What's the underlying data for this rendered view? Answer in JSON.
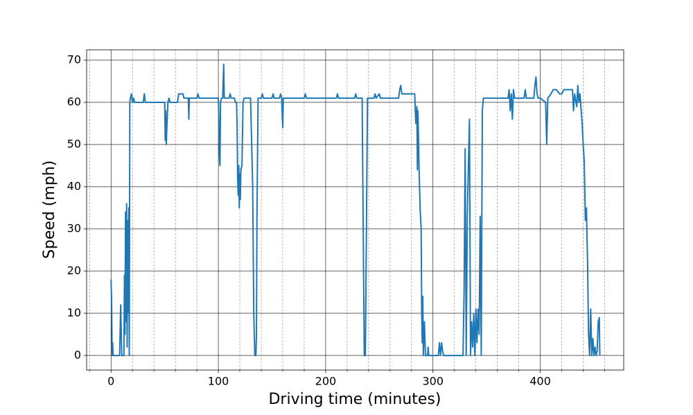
{
  "chart_data": {
    "type": "line",
    "x_label": "Driving time (minutes)",
    "y_label": "Speed (mph)",
    "color": "#1f77b4",
    "xlim": [
      -22.75,
      477.75
    ],
    "ylim": [
      -3.45,
      72.45
    ],
    "xticks": [
      0,
      100,
      200,
      300,
      400
    ],
    "xminorticks": [
      -20,
      20,
      40,
      60,
      80,
      120,
      140,
      160,
      180,
      220,
      240,
      260,
      280,
      320,
      340,
      360,
      380,
      420,
      440,
      460
    ],
    "yticks": [
      0,
      10,
      20,
      30,
      40,
      50,
      60,
      70
    ],
    "grid": true,
    "minor_grid": true,
    "x": [
      0,
      0.5,
      1,
      1.5,
      2,
      8,
      9,
      10,
      12,
      12.5,
      13,
      13.5,
      14,
      14.5,
      15,
      15.5,
      16,
      16.5,
      17,
      17.5,
      18,
      19,
      20,
      21,
      22,
      30,
      31,
      32,
      40,
      50,
      50.5,
      51,
      51.5,
      52,
      53,
      54,
      55,
      62,
      63,
      67,
      68,
      72,
      72.5,
      73,
      80,
      81,
      82,
      100,
      100.5,
      101,
      101.5,
      102,
      103,
      104,
      105,
      105.5,
      110,
      111,
      112,
      115,
      116,
      117,
      117.5,
      118,
      118.5,
      119,
      119.5,
      120,
      120.5,
      121,
      122,
      123,
      124,
      125,
      130,
      132,
      133,
      134,
      135,
      135.5,
      136,
      137,
      140,
      141,
      142,
      150,
      151,
      152,
      157,
      158,
      159,
      160,
      160.5,
      180,
      181,
      182,
      210,
      211,
      212,
      227,
      228,
      229,
      234,
      235,
      236,
      237,
      238,
      239,
      245,
      246,
      247,
      250,
      251,
      260,
      268,
      269,
      270,
      271,
      280,
      283,
      284,
      285,
      285.5,
      286,
      287,
      288,
      289,
      289.5,
      290,
      290.5,
      291,
      292,
      293,
      295,
      295.5,
      296,
      305,
      306,
      307,
      308,
      309,
      310,
      328,
      329,
      330,
      331,
      332,
      333,
      334,
      335,
      336,
      337,
      338,
      339,
      340,
      341,
      342,
      343,
      344,
      345,
      346,
      347,
      370,
      371,
      372,
      373,
      374,
      375,
      376,
      385,
      386,
      387,
      394,
      395,
      396,
      397,
      398,
      400,
      405,
      406,
      407,
      410,
      412,
      415,
      418,
      420,
      422,
      430,
      431,
      432,
      434,
      435,
      436,
      437,
      439,
      440,
      441,
      442,
      443,
      444,
      445,
      446,
      447,
      448,
      449,
      450,
      451,
      452,
      453,
      454,
      455,
      455.5
    ],
    "values": [
      18,
      14,
      0,
      3,
      0,
      0,
      12,
      0,
      0,
      19,
      5,
      34,
      8,
      36,
      2,
      32,
      10,
      35,
      0,
      60,
      61,
      62,
      60,
      61,
      60,
      60,
      62,
      60,
      60,
      60,
      51,
      58,
      50,
      54,
      60,
      61,
      60,
      60,
      62,
      62,
      61,
      61,
      56,
      61,
      61,
      62,
      61,
      61,
      55,
      47,
      45,
      60,
      61,
      61,
      69,
      61,
      61,
      62,
      61,
      61,
      60,
      60,
      54,
      42,
      38,
      45,
      35,
      43,
      37,
      44,
      45,
      60,
      61,
      61,
      61,
      40,
      10,
      0,
      0,
      5,
      33,
      61,
      61,
      62,
      61,
      61,
      62,
      61,
      61,
      62,
      61,
      54,
      61,
      61,
      62,
      61,
      61,
      62,
      61,
      61,
      62,
      61,
      61,
      30,
      0,
      0,
      30,
      61,
      61,
      62,
      61,
      62,
      61,
      61,
      61,
      63,
      64,
      62,
      62,
      62,
      55,
      59,
      44,
      58,
      45,
      35,
      30,
      10,
      3,
      14,
      0,
      8,
      0,
      0,
      2,
      0,
      0,
      3,
      0,
      3,
      1,
      0,
      0,
      15,
      49,
      0,
      33,
      45,
      56,
      0,
      8,
      2,
      10,
      0,
      11,
      3,
      11,
      5,
      33,
      0,
      58,
      61,
      61,
      63,
      58,
      62,
      56,
      63,
      61,
      61,
      63,
      61,
      61,
      64,
      66,
      62,
      61,
      61,
      60,
      50,
      61,
      62,
      63,
      63,
      62,
      62,
      63,
      63,
      58,
      62,
      59,
      64,
      60,
      62,
      55,
      50,
      46,
      32,
      35,
      23,
      5,
      0,
      11,
      0,
      4,
      0,
      2,
      0,
      1,
      8,
      9,
      0
    ]
  }
}
